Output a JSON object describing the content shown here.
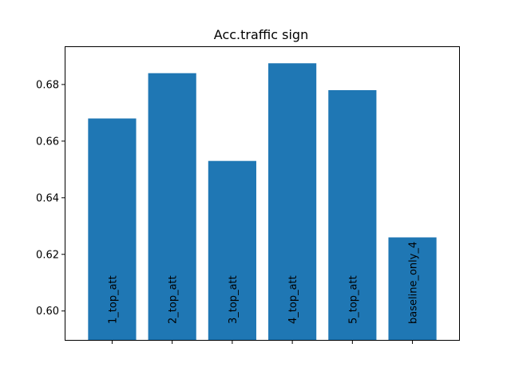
{
  "chart_data": {
    "type": "bar",
    "title": "Acc.traffic sign",
    "xlabel": "",
    "ylabel": "",
    "categories": [
      "1_top_att",
      "2_top_att",
      "3_top_att",
      "4_top_att",
      "5_top_att",
      "baseline_only_4"
    ],
    "values": [
      0.668,
      0.684,
      0.653,
      0.6875,
      0.678,
      0.626
    ],
    "ylim": [
      0.5895,
      0.6935
    ],
    "yticks": [
      0.6,
      0.62,
      0.64,
      0.66,
      0.68
    ],
    "ytick_labels": [
      "0.60",
      "0.62",
      "0.64",
      "0.66",
      "0.68"
    ],
    "bar_color": "#1f77b4",
    "grid": false,
    "legend": "none"
  }
}
